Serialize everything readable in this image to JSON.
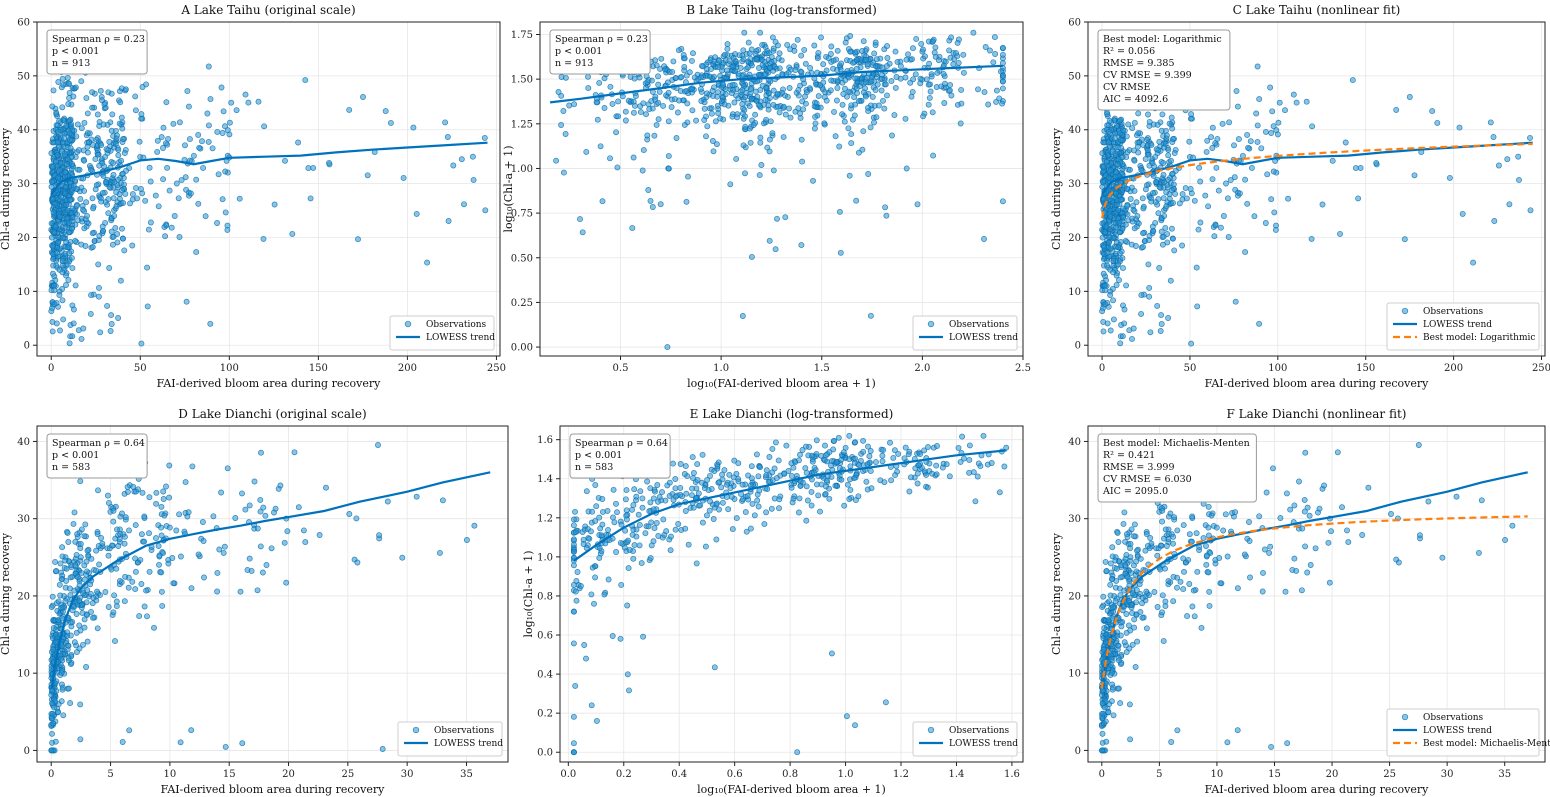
{
  "colors": {
    "points": "#2596d6",
    "lowess": "#0072bd",
    "best_fit": "#ff7f0e"
  },
  "chart_data": [
    {
      "id": "A",
      "type": "scatter",
      "title": "A  Lake Taihu (original scale)",
      "xlabel": "FAI-derived bloom area during recovery",
      "ylabel": "Chl-a during recovery",
      "xlim": [
        -8,
        252
      ],
      "ylim": [
        -2,
        60
      ],
      "xticks": [
        "0",
        "50",
        "100",
        "150",
        "200",
        "250"
      ],
      "yticks": [
        "0",
        "10",
        "20",
        "30",
        "40",
        "50",
        "60"
      ],
      "grid": true,
      "stats": [
        "Spearman ρ = 0.23",
        "p < 0.001",
        "n = 913"
      ],
      "legend": {
        "position": "bottom-right",
        "entries": [
          "Observations",
          "LOWESS trend"
        ]
      },
      "scatter_gen": {
        "seed": 11,
        "model": "taihu",
        "n": 913
      },
      "lowess": [
        [
          0,
          28
        ],
        [
          5,
          30.2
        ],
        [
          10,
          31
        ],
        [
          20,
          31.6
        ],
        [
          30,
          32.3
        ],
        [
          40,
          33.2
        ],
        [
          50,
          34.3
        ],
        [
          60,
          34.6
        ],
        [
          70,
          34.2
        ],
        [
          80,
          33.6
        ],
        [
          90,
          34.2
        ],
        [
          100,
          34.8
        ],
        [
          120,
          35.0
        ],
        [
          140,
          35.2
        ],
        [
          160,
          35.8
        ],
        [
          180,
          36.3
        ],
        [
          200,
          36.7
        ],
        [
          220,
          37.1
        ],
        [
          245,
          37.6
        ]
      ],
      "bestfit": null
    },
    {
      "id": "B",
      "type": "scatter",
      "title": "B  Lake Taihu (log-transformed)",
      "xlabel": "log₁₀(FAI-derived bloom area + 1)",
      "ylabel": "log₁₀(Chl-a + 1)",
      "xlim": [
        0.1,
        2.5
      ],
      "ylim": [
        -0.05,
        1.82
      ],
      "xticks": [
        "0.5",
        "1.0",
        "1.5",
        "2.0",
        "2.5"
      ],
      "yticks": [
        "0.00",
        "0.25",
        "0.50",
        "0.75",
        "1.00",
        "1.25",
        "1.50",
        "1.75"
      ],
      "grid": true,
      "stats": [
        "Spearman ρ = 0.23",
        "p < 0.001",
        "n = 913"
      ],
      "legend": {
        "position": "bottom-right",
        "entries": [
          "Observations",
          "LOWESS trend"
        ]
      },
      "scatter_gen": {
        "seed": 23,
        "model": "taihu_log",
        "n": 913
      },
      "lowess": [
        [
          0.15,
          1.37
        ],
        [
          0.3,
          1.39
        ],
        [
          0.5,
          1.42
        ],
        [
          0.7,
          1.45
        ],
        [
          0.9,
          1.48
        ],
        [
          1.1,
          1.5
        ],
        [
          1.3,
          1.51
        ],
        [
          1.5,
          1.52
        ],
        [
          1.7,
          1.54
        ],
        [
          1.9,
          1.55
        ],
        [
          2.1,
          1.56
        ],
        [
          2.4,
          1.575
        ]
      ],
      "bestfit": null
    },
    {
      "id": "C",
      "type": "scatter",
      "title": "C  Lake Taihu (nonlinear fit)",
      "xlabel": "FAI-derived bloom area during recovery",
      "ylabel": "Chl-a during recovery",
      "xlim": [
        -8,
        252
      ],
      "ylim": [
        -2,
        60
      ],
      "xticks": [
        "0",
        "50",
        "100",
        "150",
        "200",
        "250"
      ],
      "yticks": [
        "0",
        "10",
        "20",
        "30",
        "40",
        "50",
        "60"
      ],
      "grid": true,
      "stats": [
        "Best model: Logarithmic",
        "R² = 0.056",
        "RMSE = 9.385",
        "CV RMSE = 9.399",
        "CV RMSE",
        "AIC = 4092.6"
      ],
      "legend": {
        "position": "bottom-right",
        "entries": [
          "Observations",
          "LOWESS trend",
          "Best model: Logarithmic"
        ]
      },
      "scatter_gen": {
        "seed": 11,
        "model": "taihu",
        "n": 913
      },
      "lowess": [
        [
          0,
          28
        ],
        [
          5,
          30.2
        ],
        [
          10,
          31
        ],
        [
          20,
          31.6
        ],
        [
          30,
          32.3
        ],
        [
          40,
          33.2
        ],
        [
          50,
          34.3
        ],
        [
          60,
          34.6
        ],
        [
          70,
          34.2
        ],
        [
          80,
          33.6
        ],
        [
          90,
          34.2
        ],
        [
          100,
          34.8
        ],
        [
          120,
          35.0
        ],
        [
          140,
          35.2
        ],
        [
          160,
          35.8
        ],
        [
          180,
          36.3
        ],
        [
          200,
          36.7
        ],
        [
          220,
          37.1
        ],
        [
          245,
          37.6
        ]
      ],
      "bestfit": {
        "model": "log",
        "a": 23.6,
        "b": 2.5,
        "xmax": 245
      }
    },
    {
      "id": "D",
      "type": "scatter",
      "title": "D  Lake Dianchi (original scale)",
      "xlabel": "FAI-derived bloom area during recovery",
      "ylabel": "Chl-a during recovery",
      "xlim": [
        -1.2,
        38.5
      ],
      "ylim": [
        -1.5,
        42
      ],
      "xticks": [
        "0",
        "5",
        "10",
        "15",
        "20",
        "25",
        "30",
        "35"
      ],
      "yticks": [
        "0",
        "10",
        "20",
        "30",
        "40"
      ],
      "grid": true,
      "stats": [
        "Spearman ρ = 0.64",
        "p < 0.001",
        "n = 583"
      ],
      "legend": {
        "position": "bottom-right",
        "entries": [
          "Observations",
          "LOWESS trend"
        ]
      },
      "scatter_gen": {
        "seed": 37,
        "model": "dianchi",
        "n": 583
      },
      "lowess": [
        [
          0.05,
          8
        ],
        [
          0.3,
          11
        ],
        [
          0.7,
          14
        ],
        [
          1.2,
          17
        ],
        [
          1.8,
          19.4
        ],
        [
          2.5,
          21
        ],
        [
          3.5,
          22.5
        ],
        [
          4.5,
          23.5
        ],
        [
          5.5,
          24.5
        ],
        [
          6.5,
          25.3
        ],
        [
          8,
          26.5
        ],
        [
          10,
          27.4
        ],
        [
          12,
          28
        ],
        [
          14,
          28.6
        ],
        [
          16,
          29.1
        ],
        [
          18,
          29.7
        ],
        [
          20,
          30.2
        ],
        [
          23,
          31
        ],
        [
          26,
          32.2
        ],
        [
          30,
          33.5
        ],
        [
          33,
          34.7
        ],
        [
          37,
          36
        ]
      ],
      "bestfit": null
    },
    {
      "id": "E",
      "type": "scatter",
      "title": "E  Lake Dianchi (log-transformed)",
      "xlabel": "log₁₀(FAI-derived bloom area + 1)",
      "ylabel": "log₁₀(Chl-a + 1)",
      "xlim": [
        -0.03,
        1.64
      ],
      "ylim": [
        -0.05,
        1.67
      ],
      "xticks": [
        "0.0",
        "0.2",
        "0.4",
        "0.6",
        "0.8",
        "1.0",
        "1.2",
        "1.4",
        "1.6"
      ],
      "yticks": [
        "0.0",
        "0.2",
        "0.4",
        "0.6",
        "0.8",
        "1.0",
        "1.2",
        "1.4",
        "1.6"
      ],
      "grid": true,
      "stats": [
        "Spearman ρ = 0.64",
        "p < 0.001",
        "n = 583"
      ],
      "legend": {
        "position": "bottom-right",
        "entries": [
          "Observations",
          "LOWESS trend"
        ]
      },
      "scatter_gen": {
        "seed": 37,
        "model": "dianchi_log",
        "n": 583
      },
      "lowess": [
        [
          0.02,
          0.98
        ],
        [
          0.1,
          1.06
        ],
        [
          0.2,
          1.15
        ],
        [
          0.3,
          1.22
        ],
        [
          0.4,
          1.27
        ],
        [
          0.5,
          1.3
        ],
        [
          0.6,
          1.33
        ],
        [
          0.7,
          1.36
        ],
        [
          0.8,
          1.39
        ],
        [
          0.9,
          1.42
        ],
        [
          1.0,
          1.44
        ],
        [
          1.1,
          1.46
        ],
        [
          1.2,
          1.48
        ],
        [
          1.3,
          1.5
        ],
        [
          1.4,
          1.52
        ],
        [
          1.58,
          1.545
        ]
      ],
      "bestfit": null
    },
    {
      "id": "F",
      "type": "scatter",
      "title": "F  Lake Dianchi (nonlinear fit)",
      "xlabel": "FAI-derived bloom area during recovery",
      "ylabel": "Chl-a during recovery",
      "xlim": [
        -1.2,
        38.5
      ],
      "ylim": [
        -1.5,
        42
      ],
      "xticks": [
        "0",
        "5",
        "10",
        "15",
        "20",
        "25",
        "30",
        "35"
      ],
      "yticks": [
        "0",
        "10",
        "20",
        "30",
        "40"
      ],
      "grid": true,
      "stats": [
        "Best model: Michaelis-Menten",
        "R² = 0.421",
        "RMSE = 3.999",
        "CV RMSE = 6.030",
        "AIC = 2095.0"
      ],
      "legend": {
        "position": "bottom-right",
        "entries": [
          "Observations",
          "LOWESS trend",
          "Best model: Michaelis-Menten"
        ]
      },
      "scatter_gen": {
        "seed": 37,
        "model": "dianchi",
        "n": 583
      },
      "lowess": [
        [
          0.05,
          8
        ],
        [
          0.3,
          11
        ],
        [
          0.7,
          14
        ],
        [
          1.2,
          17
        ],
        [
          1.8,
          19.4
        ],
        [
          2.5,
          21
        ],
        [
          3.5,
          22.5
        ],
        [
          4.5,
          23.5
        ],
        [
          5.5,
          24.5
        ],
        [
          6.5,
          25.3
        ],
        [
          8,
          26.5
        ],
        [
          10,
          27.4
        ],
        [
          12,
          28
        ],
        [
          14,
          28.6
        ],
        [
          16,
          29.1
        ],
        [
          18,
          29.7
        ],
        [
          20,
          30.2
        ],
        [
          23,
          31
        ],
        [
          26,
          32.2
        ],
        [
          30,
          33.5
        ],
        [
          33,
          34.7
        ],
        [
          37,
          36
        ]
      ],
      "bestfit": {
        "model": "mm",
        "c": 8.0,
        "vmax": 23.5,
        "k": 2.0,
        "xmax": 37
      }
    }
  ]
}
